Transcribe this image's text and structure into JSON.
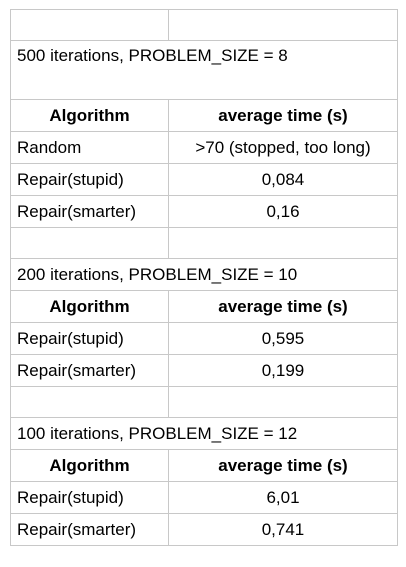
{
  "header": {
    "col1": "Algorithm",
    "col2": "average time (s)"
  },
  "sections": [
    {
      "title": "500 iterations, PROBLEM_SIZE = 8",
      "rows": [
        {
          "algorithm": "Random",
          "time": ">70 (stopped, too long)"
        },
        {
          "algorithm": "Repair(stupid)",
          "time": "0,084"
        },
        {
          "algorithm": "Repair(smarter)",
          "time": "0,16"
        }
      ]
    },
    {
      "title": "200 iterations, PROBLEM_SIZE = 10",
      "rows": [
        {
          "algorithm": "Repair(stupid)",
          "time": "0,595"
        },
        {
          "algorithm": "Repair(smarter)",
          "time": "0,199"
        }
      ]
    },
    {
      "title": "100 iterations, PROBLEM_SIZE = 12",
      "rows": [
        {
          "algorithm": "Repair(stupid)",
          "time": "6,01"
        },
        {
          "algorithm": "Repair(smarter)",
          "time": "0,741"
        }
      ]
    }
  ]
}
